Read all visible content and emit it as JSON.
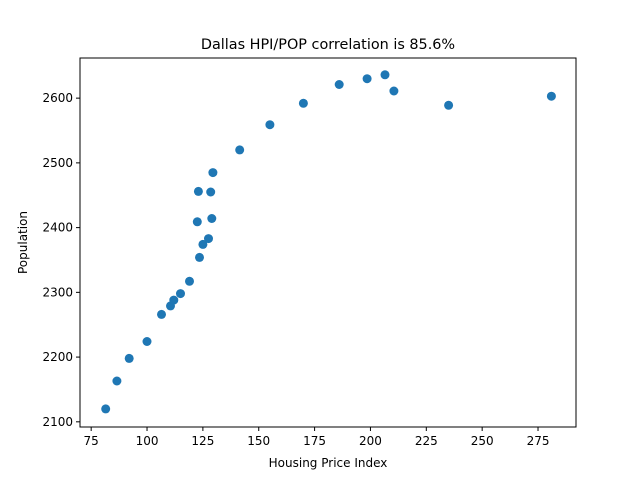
{
  "chart_data": {
    "type": "scatter",
    "title": "Dallas HPI/POP correlation  is 85.6%",
    "xlabel": "Housing Price Index",
    "ylabel": "Population",
    "xlim": [
      70,
      292
    ],
    "ylim": [
      2092,
      2662
    ],
    "xticks": [
      75,
      100,
      125,
      150,
      175,
      200,
      225,
      250,
      275
    ],
    "yticks": [
      2100,
      2200,
      2300,
      2400,
      2500,
      2600
    ],
    "grid": false,
    "marker_color": "#1f77b4",
    "points": [
      {
        "x": 81.5,
        "y": 2120
      },
      {
        "x": 86.5,
        "y": 2163
      },
      {
        "x": 92,
        "y": 2198
      },
      {
        "x": 100,
        "y": 2224
      },
      {
        "x": 106.5,
        "y": 2266
      },
      {
        "x": 110.5,
        "y": 2279
      },
      {
        "x": 112,
        "y": 2288
      },
      {
        "x": 115,
        "y": 2298
      },
      {
        "x": 119,
        "y": 2317
      },
      {
        "x": 123.5,
        "y": 2354
      },
      {
        "x": 125,
        "y": 2374
      },
      {
        "x": 127.5,
        "y": 2383
      },
      {
        "x": 122.5,
        "y": 2409
      },
      {
        "x": 129,
        "y": 2414
      },
      {
        "x": 123,
        "y": 2456
      },
      {
        "x": 128.5,
        "y": 2455
      },
      {
        "x": 129.5,
        "y": 2485
      },
      {
        "x": 141.5,
        "y": 2520
      },
      {
        "x": 155,
        "y": 2559
      },
      {
        "x": 170,
        "y": 2592
      },
      {
        "x": 186,
        "y": 2621
      },
      {
        "x": 198.5,
        "y": 2630
      },
      {
        "x": 206.5,
        "y": 2636
      },
      {
        "x": 210.5,
        "y": 2611
      },
      {
        "x": 235,
        "y": 2589
      },
      {
        "x": 281,
        "y": 2603
      }
    ]
  }
}
